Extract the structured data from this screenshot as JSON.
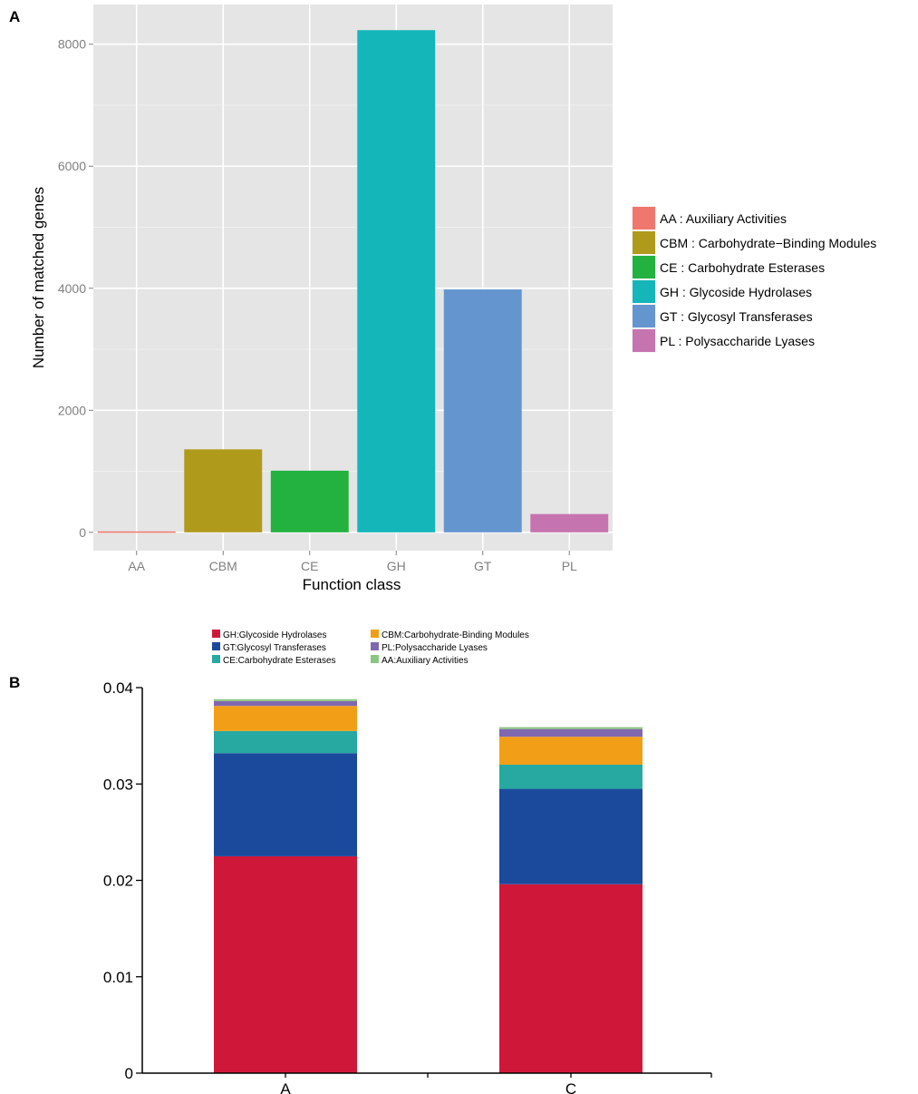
{
  "panels": {
    "a_label": "A",
    "b_label": "B"
  },
  "chart_data": [
    {
      "type": "bar",
      "panel": "A",
      "title": "",
      "xlabel": "Function class",
      "ylabel": "Number of matched genes",
      "categories": [
        "AA",
        "CBM",
        "CE",
        "GH",
        "GT",
        "PL"
      ],
      "values": [
        15,
        1360,
        1010,
        8230,
        3980,
        300
      ],
      "colors": [
        "#F0776E",
        "#B09A1C",
        "#23B13F",
        "#14B6BA",
        "#6595CF",
        "#C674B0"
      ],
      "yticks": [
        0,
        2000,
        4000,
        6000,
        8000
      ],
      "ylim": [
        -300,
        8650
      ],
      "grid": true,
      "legend_position": "right",
      "legend": [
        {
          "key": "AA",
          "label": "AA : Auxiliary Activities",
          "color": "#F0776E"
        },
        {
          "key": "CBM",
          "label": "CBM : Carbohydrate−Binding Modules",
          "color": "#B09A1C"
        },
        {
          "key": "CE",
          "label": "CE : Carbohydrate Esterases",
          "color": "#23B13F"
        },
        {
          "key": "GH",
          "label": "GH : Glycoside Hydrolases",
          "color": "#14B6BA"
        },
        {
          "key": "GT",
          "label": "GT : Glycosyl Transferases",
          "color": "#6595CF"
        },
        {
          "key": "PL",
          "label": "PL : Polysaccharide Lyases",
          "color": "#C674B0"
        }
      ]
    },
    {
      "type": "bar",
      "stacked": true,
      "panel": "B",
      "title": "",
      "xlabel": "",
      "ylabel": "",
      "categories": [
        "A",
        "C"
      ],
      "ylim": [
        0,
        0.04
      ],
      "yticks": [
        "0",
        "0.01",
        "0.02",
        "0.03",
        "0.04"
      ],
      "legend_position": "top",
      "series": [
        {
          "name": "GH:Glycoside Hydrolases",
          "color": "#CF1839",
          "values": [
            0.0225,
            0.0196
          ]
        },
        {
          "name": "GT:Glycosyl Transferases",
          "color": "#1B4A9D",
          "values": [
            0.0107,
            0.0099
          ]
        },
        {
          "name": "CE:Carbohydrate Esterases",
          "color": "#27A9A1",
          "values": [
            0.0023,
            0.0025
          ]
        },
        {
          "name": "CBM:Carbohydrate-Binding Modules",
          "color": "#F29F17",
          "values": [
            0.0026,
            0.0029
          ]
        },
        {
          "name": "PL:Polysaccharide Lyases",
          "color": "#8068AF",
          "values": [
            0.0005,
            0.0008
          ]
        },
        {
          "name": "AA:Auxiliary Activities",
          "color": "#8DC584",
          "values": [
            0.0002,
            0.0002
          ]
        }
      ],
      "legend_order": [
        0,
        3,
        1,
        4,
        2,
        5
      ]
    }
  ]
}
